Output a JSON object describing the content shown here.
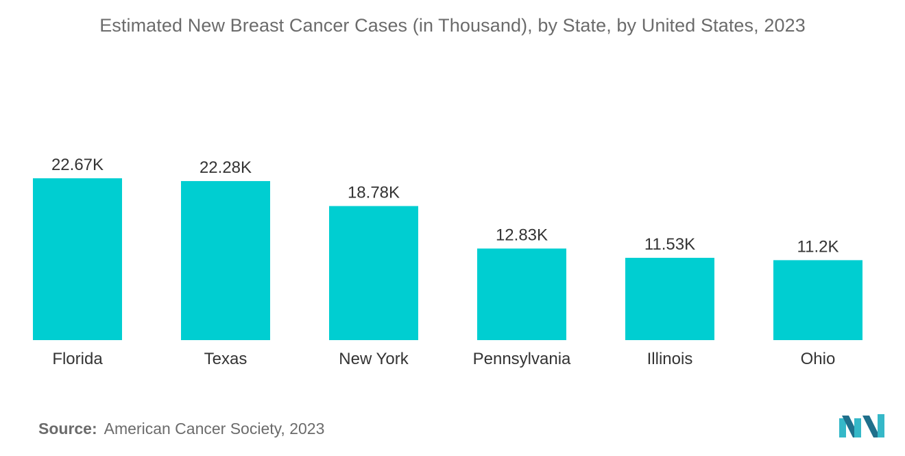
{
  "chart_data": {
    "type": "bar",
    "title": "Estimated New Breast Cancer Cases (in Thousand), by State, by United States, 2023",
    "categories": [
      "Florida",
      "Texas",
      "New York",
      "Pennsylvania",
      "Illinois",
      "Ohio"
    ],
    "values": [
      22.67,
      22.28,
      18.78,
      12.83,
      11.53,
      11.2
    ],
    "data_labels": [
      "22.67K",
      "22.28K",
      "18.78K",
      "12.83K",
      "11.53K",
      "11.2K"
    ],
    "xlabel": "",
    "ylabel": "",
    "ylim": [
      0,
      22.67
    ],
    "grid": false,
    "legend": "none",
    "bar_color": "#00CED1"
  },
  "source": {
    "label": "Source:",
    "text": "American Cancer Society, 2023"
  },
  "colors": {
    "bar": "#00CED1",
    "text": "#6b6b6b",
    "label_text": "#333333",
    "logo_dark": "#1f6f8b",
    "logo_light": "#35b8c8"
  }
}
